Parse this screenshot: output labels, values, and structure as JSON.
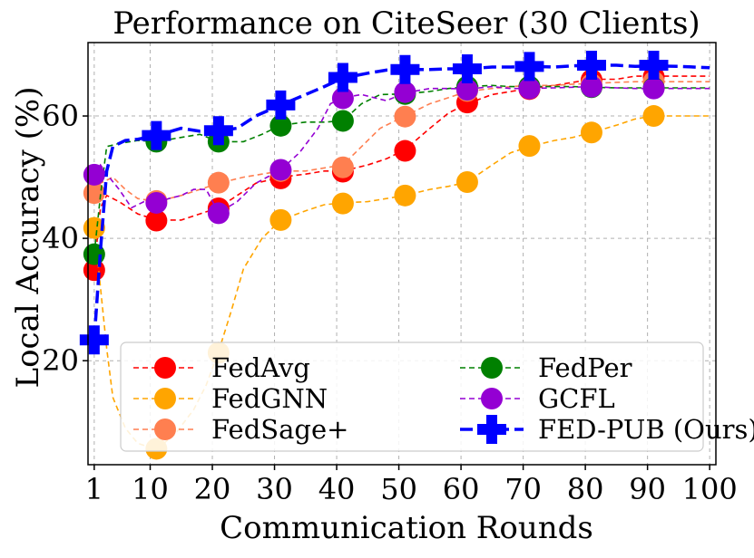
{
  "chart_data": {
    "type": "line",
    "title": "Performance on CiteSeer (30 Clients)",
    "xlabel": "Communication Rounds",
    "ylabel": "Local Accuracy (%)",
    "xlim": [
      0,
      101
    ],
    "ylim": [
      3,
      72
    ],
    "xticks": [
      1,
      10,
      20,
      30,
      40,
      50,
      60,
      70,
      80,
      90,
      100
    ],
    "yticks": [
      20,
      40,
      60
    ],
    "grid": true,
    "legend_position": "lower-right",
    "legend_columns": 2,
    "series": [
      {
        "name": "FedAvg",
        "color": "#ff0000",
        "dash": "dashed",
        "marker": "circle",
        "line": [
          [
            1,
            35
          ],
          [
            2,
            45
          ],
          [
            3,
            47
          ],
          [
            5,
            46
          ],
          [
            8,
            44
          ],
          [
            11,
            43
          ],
          [
            15,
            43
          ],
          [
            18,
            44
          ],
          [
            21,
            45
          ],
          [
            24,
            47
          ],
          [
            27,
            49
          ],
          [
            31,
            50
          ],
          [
            35,
            50.5
          ],
          [
            38,
            51
          ],
          [
            41,
            51
          ],
          [
            45,
            52
          ],
          [
            48,
            53
          ],
          [
            51,
            54.5
          ],
          [
            55,
            58
          ],
          [
            58,
            60.5
          ],
          [
            61,
            62
          ],
          [
            65,
            63.5
          ],
          [
            68,
            64
          ],
          [
            71,
            64.5
          ],
          [
            75,
            65
          ],
          [
            78,
            65.5
          ],
          [
            81,
            66
          ],
          [
            85,
            66
          ],
          [
            88,
            66.5
          ],
          [
            91,
            66.5
          ],
          [
            95,
            66.5
          ],
          [
            100,
            66.5
          ]
        ],
        "markers": [
          [
            1,
            34.8
          ],
          [
            11,
            42.9
          ],
          [
            21,
            44.9
          ],
          [
            31,
            49.8
          ],
          [
            41,
            50.9
          ],
          [
            51,
            54.3
          ],
          [
            61,
            62.2
          ],
          [
            71,
            64.4
          ],
          [
            81,
            65.9
          ],
          [
            91,
            66.4
          ]
        ]
      },
      {
        "name": "FedGNN",
        "color": "#ffa500",
        "dash": "dashed",
        "marker": "circle",
        "line": [
          [
            1,
            42
          ],
          [
            2,
            32
          ],
          [
            3,
            22
          ],
          [
            4,
            14
          ],
          [
            6,
            9
          ],
          [
            8,
            6.5
          ],
          [
            11,
            5.5
          ],
          [
            14,
            8
          ],
          [
            17,
            12
          ],
          [
            19,
            16
          ],
          [
            21,
            21.5
          ],
          [
            23,
            28
          ],
          [
            25,
            35
          ],
          [
            28,
            40
          ],
          [
            31,
            43
          ],
          [
            35,
            44.5
          ],
          [
            38,
            45.5
          ],
          [
            41,
            45.8
          ],
          [
            45,
            46
          ],
          [
            48,
            46.5
          ],
          [
            51,
            47
          ],
          [
            55,
            48
          ],
          [
            58,
            48.5
          ],
          [
            61,
            49.2
          ],
          [
            65,
            52
          ],
          [
            68,
            54
          ],
          [
            71,
            55
          ],
          [
            75,
            56
          ],
          [
            78,
            56.5
          ],
          [
            81,
            57.3
          ],
          [
            85,
            58.5
          ],
          [
            88,
            59.5
          ],
          [
            91,
            60
          ],
          [
            95,
            60
          ],
          [
            100,
            60
          ]
        ],
        "markers": [
          [
            1,
            41.7
          ],
          [
            11,
            5.6
          ],
          [
            21,
            21.3
          ],
          [
            31,
            43
          ],
          [
            41,
            45.7
          ],
          [
            51,
            47
          ],
          [
            61,
            49.2
          ],
          [
            71,
            55.1
          ],
          [
            81,
            57.3
          ],
          [
            91,
            60
          ]
        ]
      },
      {
        "name": "FedSage+",
        "color": "#ff7f50",
        "dash": "dashed",
        "marker": "circle",
        "line": [
          [
            1,
            47.5
          ],
          [
            2,
            49
          ],
          [
            4,
            50
          ],
          [
            6,
            48
          ],
          [
            8,
            46.5
          ],
          [
            11,
            46
          ],
          [
            15,
            47
          ],
          [
            18,
            48
          ],
          [
            21,
            49
          ],
          [
            25,
            50
          ],
          [
            28,
            50.5
          ],
          [
            31,
            51
          ],
          [
            35,
            51
          ],
          [
            38,
            51.5
          ],
          [
            41,
            52
          ],
          [
            44,
            55
          ],
          [
            47,
            58
          ],
          [
            51,
            60
          ],
          [
            55,
            62
          ],
          [
            58,
            63
          ],
          [
            61,
            64
          ],
          [
            65,
            64.5
          ],
          [
            68,
            64.8
          ],
          [
            71,
            65
          ],
          [
            75,
            65
          ],
          [
            78,
            65.2
          ],
          [
            81,
            65.3
          ],
          [
            85,
            65.5
          ],
          [
            88,
            65.6
          ],
          [
            91,
            65.6
          ],
          [
            95,
            65.6
          ],
          [
            100,
            65.6
          ]
        ],
        "markers": [
          [
            1,
            47.4
          ],
          [
            11,
            46.1
          ],
          [
            21,
            49.1
          ],
          [
            31,
            51
          ],
          [
            41,
            51.6
          ],
          [
            51,
            59.9
          ],
          [
            61,
            64.1
          ],
          [
            71,
            64.8
          ],
          [
            81,
            65.2
          ],
          [
            91,
            65.6
          ]
        ]
      },
      {
        "name": "FedPer",
        "color": "#008000",
        "dash": "dashed",
        "marker": "circle",
        "line": [
          [
            1,
            37.5
          ],
          [
            2,
            47
          ],
          [
            3,
            55
          ],
          [
            5,
            55.5
          ],
          [
            8,
            56
          ],
          [
            11,
            55.8
          ],
          [
            15,
            56.5
          ],
          [
            18,
            57
          ],
          [
            21,
            55.8
          ],
          [
            25,
            55.8
          ],
          [
            28,
            57
          ],
          [
            31,
            58.5
          ],
          [
            35,
            59
          ],
          [
            38,
            59
          ],
          [
            41,
            59.2
          ],
          [
            44,
            62
          ],
          [
            47,
            63.5
          ],
          [
            51,
            63.6
          ],
          [
            55,
            64
          ],
          [
            58,
            64.5
          ],
          [
            61,
            64.8
          ],
          [
            65,
            65
          ],
          [
            68,
            64.8
          ],
          [
            71,
            64.8
          ],
          [
            75,
            64.8
          ],
          [
            78,
            64.8
          ],
          [
            81,
            64.7
          ],
          [
            85,
            64.6
          ],
          [
            88,
            64.6
          ],
          [
            91,
            64.6
          ],
          [
            95,
            64.6
          ],
          [
            100,
            64.6
          ]
        ],
        "markers": [
          [
            1,
            37.4
          ],
          [
            11,
            55.8
          ],
          [
            21,
            55.8
          ],
          [
            31,
            58.4
          ],
          [
            41,
            59.2
          ],
          [
            51,
            63.6
          ],
          [
            61,
            64.8
          ],
          [
            71,
            64.8
          ],
          [
            81,
            64.7
          ],
          [
            91,
            64.6
          ]
        ]
      },
      {
        "name": "GCFL",
        "color": "#9400d3",
        "dash": "dashed",
        "marker": "circle",
        "line": [
          [
            1,
            50.5
          ],
          [
            2,
            52
          ],
          [
            3,
            50.5
          ],
          [
            5,
            48
          ],
          [
            7,
            45
          ],
          [
            9,
            46
          ],
          [
            11,
            45.8
          ],
          [
            13,
            46.5
          ],
          [
            15,
            47
          ],
          [
            17,
            48
          ],
          [
            19,
            48
          ],
          [
            21,
            44.2
          ],
          [
            24,
            46
          ],
          [
            27,
            49
          ],
          [
            31,
            51.2
          ],
          [
            34,
            54
          ],
          [
            37,
            58
          ],
          [
            39,
            62
          ],
          [
            41,
            63
          ],
          [
            44,
            63.5
          ],
          [
            48,
            62.5
          ],
          [
            51,
            63.8
          ],
          [
            55,
            64.5
          ],
          [
            58,
            64.5
          ],
          [
            61,
            64.4
          ],
          [
            65,
            64.8
          ],
          [
            68,
            64.5
          ],
          [
            71,
            64.5
          ],
          [
            75,
            64.6
          ],
          [
            78,
            64.7
          ],
          [
            81,
            64.8
          ],
          [
            85,
            64.6
          ],
          [
            88,
            64.5
          ],
          [
            91,
            64.5
          ],
          [
            95,
            64.5
          ],
          [
            100,
            64.5
          ]
        ],
        "markers": [
          [
            1,
            50.4
          ],
          [
            11,
            45.8
          ],
          [
            21,
            44.1
          ],
          [
            31,
            51.2
          ],
          [
            41,
            62.9
          ],
          [
            51,
            63.9
          ],
          [
            61,
            64.3
          ],
          [
            71,
            64.5
          ],
          [
            81,
            64.8
          ],
          [
            91,
            64.5
          ]
        ]
      },
      {
        "name": "FED-PUB (Ours)",
        "color": "#0000ff",
        "dash": "dashed-thick",
        "marker": "plus",
        "line": [
          [
            1,
            23.5
          ],
          [
            2,
            38
          ],
          [
            3,
            51
          ],
          [
            4,
            55
          ],
          [
            6,
            56
          ],
          [
            8,
            56.2
          ],
          [
            11,
            56.8
          ],
          [
            15,
            58
          ],
          [
            18,
            57.5
          ],
          [
            21,
            57.6
          ],
          [
            24,
            58
          ],
          [
            27,
            60
          ],
          [
            31,
            61.8
          ],
          [
            35,
            63.5
          ],
          [
            38,
            64.8
          ],
          [
            41,
            66.2
          ],
          [
            45,
            67
          ],
          [
            48,
            67.5
          ],
          [
            51,
            67.6
          ],
          [
            55,
            67.6
          ],
          [
            58,
            67.7
          ],
          [
            61,
            67.7
          ],
          [
            65,
            68
          ],
          [
            68,
            68
          ],
          [
            71,
            68.1
          ],
          [
            75,
            68
          ],
          [
            78,
            68.2
          ],
          [
            81,
            68.3
          ],
          [
            85,
            68.3
          ],
          [
            88,
            68.1
          ],
          [
            91,
            68.2
          ],
          [
            95,
            68.1
          ],
          [
            100,
            67.9
          ]
        ],
        "markers": [
          [
            1,
            23.4
          ],
          [
            11,
            56.8
          ],
          [
            21,
            57.6
          ],
          [
            31,
            61.8
          ],
          [
            41,
            66.3
          ],
          [
            51,
            67.6
          ],
          [
            61,
            67.7
          ],
          [
            71,
            68.1
          ],
          [
            81,
            68.3
          ],
          [
            91,
            68.3
          ]
        ]
      }
    ]
  }
}
